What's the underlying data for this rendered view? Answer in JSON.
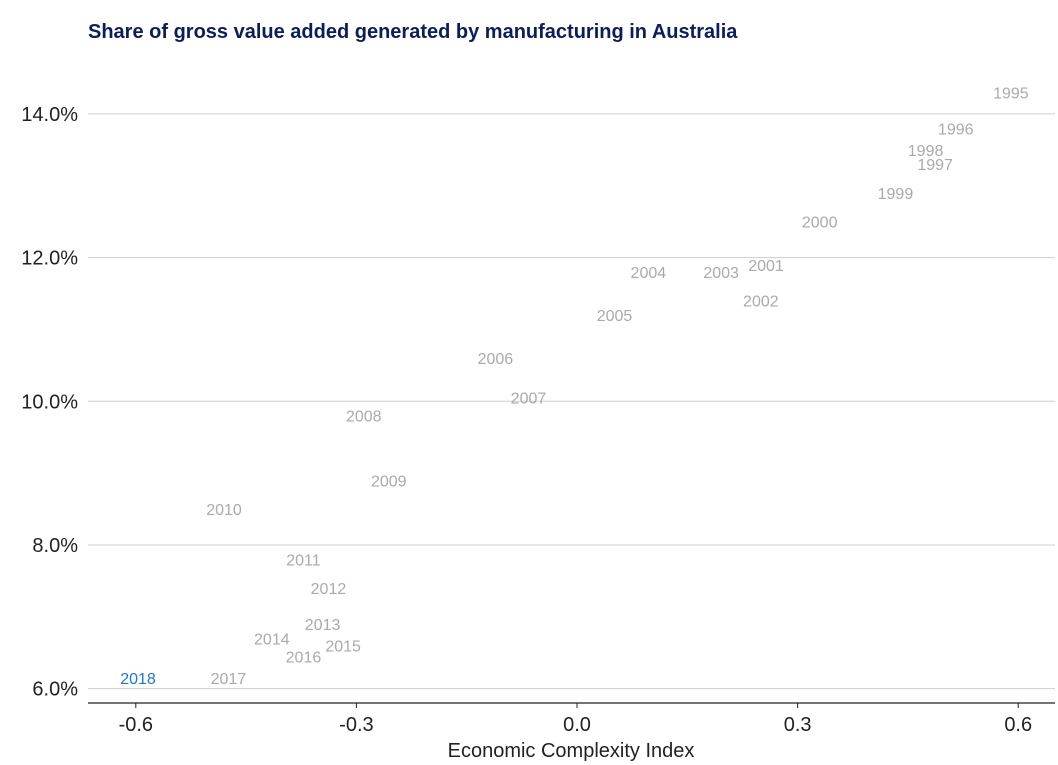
{
  "chart_data": {
    "type": "scatter",
    "title": "Share of gross value added generated by manufacturing in Australia",
    "xlabel": "Economic Complexity Index",
    "ylabel": "",
    "xlim": [
      -0.665,
      0.65
    ],
    "ylim": [
      5.8,
      14.75
    ],
    "x_ticks": [
      -0.6,
      -0.3,
      0.0,
      0.3,
      0.6
    ],
    "x_tick_labels": [
      "-0.6",
      "-0.3",
      "0.0",
      "0.3",
      "0.6"
    ],
    "y_ticks": [
      6.0,
      8.0,
      10.0,
      12.0,
      14.0
    ],
    "y_tick_labels": [
      "6.0%",
      "8.0%",
      "10.0%",
      "12.0%",
      "14.0%"
    ],
    "grid": "horizontal",
    "colors": {
      "default_point": "#aaaaaa",
      "highlight_point": "#1f77d4",
      "title": "#0b1d5c"
    },
    "points": [
      {
        "label": "1995",
        "x": 0.59,
        "y": 14.3
      },
      {
        "label": "1996",
        "x": 0.515,
        "y": 13.8
      },
      {
        "label": "1997",
        "x": 0.487,
        "y": 13.3
      },
      {
        "label": "1998",
        "x": 0.474,
        "y": 13.5
      },
      {
        "label": "1999",
        "x": 0.433,
        "y": 12.9
      },
      {
        "label": "2000",
        "x": 0.33,
        "y": 12.5
      },
      {
        "label": "2001",
        "x": 0.257,
        "y": 11.9
      },
      {
        "label": "2002",
        "x": 0.25,
        "y": 11.4
      },
      {
        "label": "2003",
        "x": 0.196,
        "y": 11.8
      },
      {
        "label": "2004",
        "x": 0.097,
        "y": 11.8
      },
      {
        "label": "2005",
        "x": 0.051,
        "y": 11.2
      },
      {
        "label": "2006",
        "x": -0.111,
        "y": 10.6
      },
      {
        "label": "2007",
        "x": -0.066,
        "y": 10.05
      },
      {
        "label": "2008",
        "x": -0.29,
        "y": 9.8
      },
      {
        "label": "2009",
        "x": -0.256,
        "y": 8.9
      },
      {
        "label": "2010",
        "x": -0.48,
        "y": 8.5
      },
      {
        "label": "2011",
        "x": -0.372,
        "y": 7.8
      },
      {
        "label": "2012",
        "x": -0.338,
        "y": 7.4
      },
      {
        "label": "2013",
        "x": -0.346,
        "y": 6.9
      },
      {
        "label": "2014",
        "x": -0.415,
        "y": 6.7
      },
      {
        "label": "2015",
        "x": -0.318,
        "y": 6.6
      },
      {
        "label": "2016",
        "x": -0.372,
        "y": 6.45
      },
      {
        "label": "2017",
        "x": -0.474,
        "y": 6.15
      },
      {
        "label": "2018",
        "x": -0.597,
        "y": 6.15,
        "highlight": true
      }
    ]
  }
}
